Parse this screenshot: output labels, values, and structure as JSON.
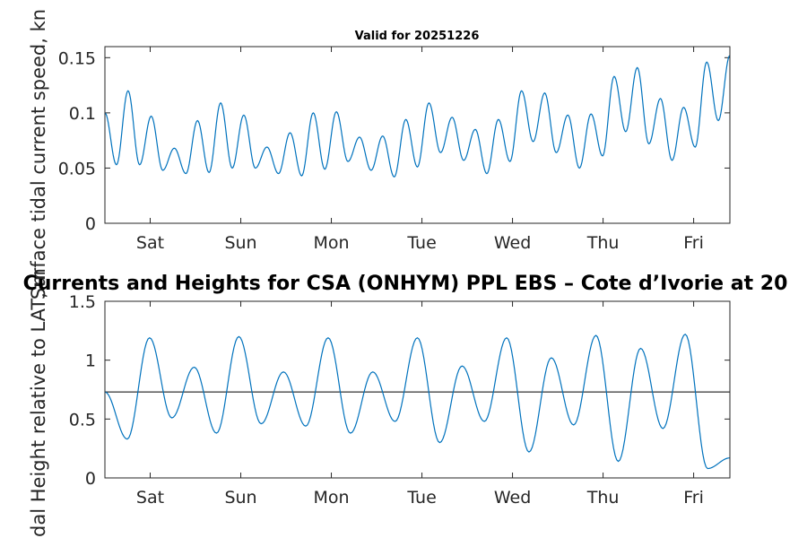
{
  "chart_data": [
    {
      "type": "line",
      "title": "Valid for 20251226",
      "ylabel": "Surface tidal current speed, kn",
      "xlabel": "",
      "x_range_days": [
        0,
        6.9
      ],
      "ylim": [
        0,
        0.16
      ],
      "yticks": [
        0,
        0.05,
        0.1,
        0.15
      ],
      "ytick_labels": [
        "0",
        "0.05",
        "0.1",
        "0.15"
      ],
      "xticks": [
        {
          "day": 0.5,
          "label": "Sat"
        },
        {
          "day": 1.5,
          "label": "Sun"
        },
        {
          "day": 2.5,
          "label": "Mon"
        },
        {
          "day": 3.5,
          "label": "Tue"
        },
        {
          "day": 4.5,
          "label": "Wed"
        },
        {
          "day": 5.5,
          "label": "Thu"
        },
        {
          "day": 6.5,
          "label": "Fri"
        }
      ],
      "series": [
        {
          "name": "Surface tidal current speed",
          "color": "#0072BD",
          "extrema": [
            0.1,
            0.053,
            0.12,
            0.053,
            0.097,
            0.048,
            0.068,
            0.045,
            0.093,
            0.046,
            0.109,
            0.05,
            0.098,
            0.05,
            0.069,
            0.045,
            0.082,
            0.043,
            0.1,
            0.049,
            0.101,
            0.056,
            0.078,
            0.048,
            0.079,
            0.042,
            0.094,
            0.051,
            0.109,
            0.064,
            0.096,
            0.057,
            0.085,
            0.045,
            0.094,
            0.056,
            0.12,
            0.074,
            0.118,
            0.064,
            0.098,
            0.05,
            0.099,
            0.061,
            0.133,
            0.083,
            0.141,
            0.072,
            0.113,
            0.057,
            0.105,
            0.069,
            0.146,
            0.093,
            0.152
          ]
        }
      ]
    },
    {
      "type": "line",
      "title": "Currents and Heights for CSA (ONHYM) PPL EBS  – Cote d’Ivorie at 20",
      "ylabel": "Tidal Height relative to LAT, m",
      "xlabel": "",
      "x_range_days": [
        0,
        6.9
      ],
      "ylim": [
        0,
        1.5
      ],
      "yticks": [
        0,
        0.5,
        1,
        1.5
      ],
      "ytick_labels": [
        "0",
        "0.5",
        "1",
        "1.5"
      ],
      "xticks": [
        {
          "day": 0.5,
          "label": "Sat"
        },
        {
          "day": 1.5,
          "label": "Sun"
        },
        {
          "day": 2.5,
          "label": "Mon"
        },
        {
          "day": 3.5,
          "label": "Tue"
        },
        {
          "day": 4.5,
          "label": "Wed"
        },
        {
          "day": 5.5,
          "label": "Thu"
        },
        {
          "day": 6.5,
          "label": "Fri"
        }
      ],
      "reference_line": {
        "value": 0.73,
        "color": "#000000"
      },
      "series": [
        {
          "name": "Tidal height",
          "color": "#0072BD",
          "extrema": [
            0.73,
            0.33,
            1.19,
            0.51,
            0.94,
            0.38,
            1.2,
            0.46,
            0.9,
            0.44,
            1.19,
            0.38,
            0.9,
            0.48,
            1.19,
            0.3,
            0.95,
            0.48,
            1.19,
            0.22,
            1.02,
            0.45,
            1.21,
            0.14,
            1.1,
            0.42,
            1.22,
            0.08,
            0.17
          ]
        }
      ]
    }
  ]
}
